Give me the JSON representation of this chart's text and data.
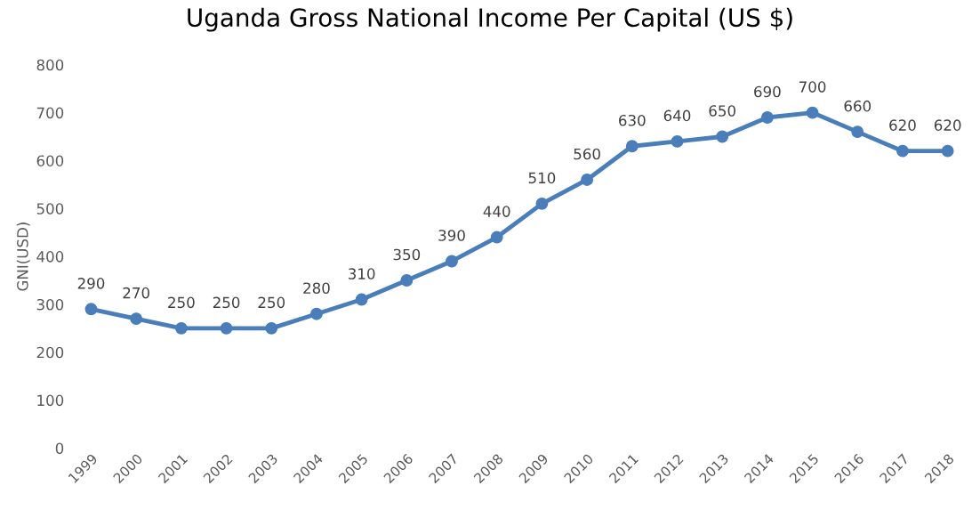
{
  "chart_data": {
    "type": "line",
    "title": "Uganda Gross National Income Per Capital (US $)",
    "ylabel": "GNI(USD)",
    "categories": [
      "1999",
      "2000",
      "2001",
      "2002",
      "2003",
      "2004",
      "2005",
      "2006",
      "2007",
      "2008",
      "2009",
      "2010",
      "2011",
      "2012",
      "2013",
      "2014",
      "2015",
      "2016",
      "2017",
      "2018"
    ],
    "series": [
      {
        "color": "#4a7ebb",
        "values": [
          290,
          270,
          250,
          250,
          250,
          280,
          310,
          350,
          390,
          440,
          510,
          560,
          630,
          640,
          650,
          690,
          700,
          660,
          620,
          620
        ]
      }
    ],
    "ylim": [
      0,
      800
    ],
    "yticks": [
      0,
      100,
      200,
      300,
      400,
      500,
      600,
      700,
      800
    ],
    "grid": false,
    "marker": "circle",
    "line_style": "solid",
    "data_labels": true
  }
}
